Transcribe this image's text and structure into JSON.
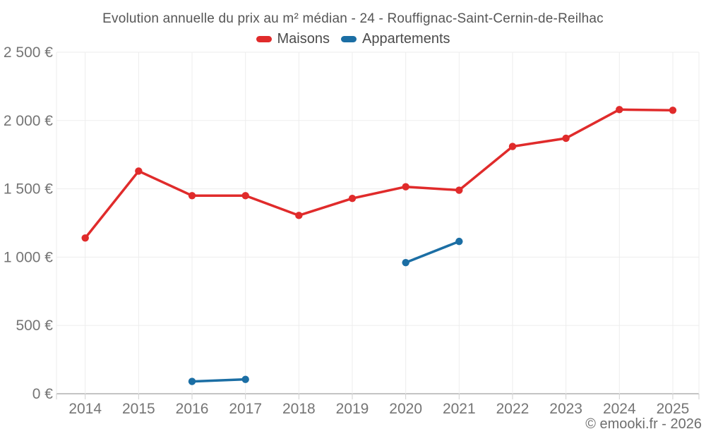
{
  "chart_data": {
    "type": "line",
    "title": "Evolution annuelle du prix au m² médian - 24 - Rouffignac-Saint-Cernin-de-Reilhac",
    "x": [
      "2014",
      "2015",
      "2016",
      "2017",
      "2018",
      "2019",
      "2020",
      "2021",
      "2022",
      "2023",
      "2024",
      "2025"
    ],
    "series": [
      {
        "name": "Maisons",
        "color": "#e02b2b",
        "values": [
          1140,
          1630,
          1450,
          1450,
          1305,
          1430,
          1515,
          1490,
          1810,
          1870,
          2080,
          2075
        ]
      },
      {
        "name": "Appartements",
        "color": "#1b6ea4",
        "values": [
          null,
          null,
          90,
          105,
          null,
          null,
          960,
          1115,
          null,
          null,
          null,
          null
        ]
      }
    ],
    "xlabel": "",
    "ylabel": "",
    "ylim": [
      0,
      2500
    ],
    "ytick_step": 500,
    "yunit": "€",
    "ytick_labels": [
      "0 €",
      "500 €",
      "1 000 €",
      "1 500 €",
      "2 000 €",
      "2 500 €"
    ],
    "grid": true,
    "legend_position": "top"
  },
  "footer": "© emooki.fr - 2026",
  "colors": {
    "gridline": "#ededed",
    "axis_line": "#c4c4c4",
    "tick": "#cfcfcf",
    "axis_text": "#757575"
  }
}
